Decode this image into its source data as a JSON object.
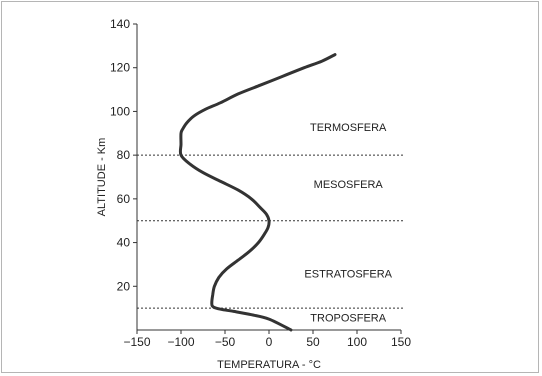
{
  "chart_data": {
    "type": "line",
    "title": "",
    "xlabel": "TEMPERATURA - °C",
    "ylabel": "ALTITUDE - Km",
    "xlim": [
      -150,
      150
    ],
    "ylim": [
      0,
      140
    ],
    "xticks": [
      -150,
      -100,
      -50,
      0,
      50,
      100,
      150
    ],
    "xtick_labels": [
      "−150",
      "−100",
      "−50",
      "0",
      "50",
      "100",
      "150"
    ],
    "yticks": [
      20,
      40,
      60,
      80,
      100,
      120,
      140
    ],
    "grid": false,
    "legend": "none",
    "line_color": "#333333",
    "series": [
      {
        "x": [
          25,
          0,
          -20,
          -40,
          -55,
          -63,
          -65,
          -64,
          -62,
          -57,
          -48,
          -35,
          -22,
          -12,
          -5,
          -1,
          0,
          -3,
          -10,
          -20,
          -35,
          -55,
          -75,
          -90,
          -100,
          -100,
          -100,
          -98,
          -93,
          -85,
          -72,
          -55,
          -35,
          -10,
          15,
          40,
          60,
          75
        ],
        "y": [
          0,
          5,
          7,
          8.5,
          9.5,
          10.5,
          12,
          16,
          20,
          24,
          28,
          32,
          36,
          40,
          44,
          47,
          50,
          53,
          56,
          60,
          64,
          68,
          72,
          76,
          80,
          85,
          90,
          92,
          95,
          98,
          101,
          104,
          108,
          112,
          116,
          120,
          123,
          126
        ]
      }
    ],
    "boundaries": [
      10,
      50,
      80
    ],
    "layers": [
      {
        "name": "TERMOSFERA",
        "x": 90,
        "y": 91
      },
      {
        "name": "MESOSFERA",
        "x": 90,
        "y": 65
      },
      {
        "name": "ESTRATOSFERA",
        "x": 90,
        "y": 24
      },
      {
        "name": "TROPOSFERA",
        "x": 90,
        "y": 4
      }
    ]
  }
}
